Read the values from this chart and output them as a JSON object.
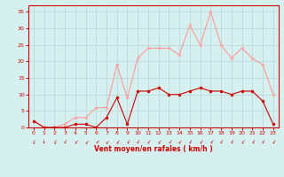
{
  "hours": [
    0,
    1,
    2,
    3,
    4,
    5,
    6,
    7,
    8,
    9,
    10,
    11,
    12,
    13,
    14,
    15,
    16,
    17,
    18,
    19,
    20,
    21,
    22,
    23
  ],
  "wind_avg": [
    2,
    0,
    0,
    0,
    1,
    1,
    0,
    3,
    9,
    1,
    11,
    11,
    12,
    10,
    10,
    11,
    12,
    11,
    11,
    10,
    11,
    11,
    8,
    1
  ],
  "wind_gust": [
    2,
    0,
    0,
    1,
    3,
    3,
    6,
    6,
    19,
    9,
    21,
    24,
    24,
    24,
    22,
    31,
    25,
    35,
    25,
    21,
    24,
    21,
    19,
    10
  ],
  "wind_dir_deg": [
    200,
    180,
    200,
    210,
    220,
    225,
    230,
    225,
    220,
    215,
    210,
    215,
    220,
    215,
    220,
    210,
    215,
    215,
    210,
    210,
    215,
    210,
    210,
    215
  ],
  "bg_color": "#d6f0f0",
  "grid_color": "#b8d4d4",
  "line_avg_color": "#cc0000",
  "line_gust_color": "#ff9999",
  "marker_avg_color": "#cc0000",
  "marker_gust_color": "#ffaaaa",
  "xlabel": "Vent moyen/en rafales ( km/h )",
  "xlabel_color": "#cc0000",
  "tick_color": "#cc0000",
  "axis_color": "#cc0000",
  "arrow_color": "#cc0000",
  "ylim": [
    0,
    37
  ],
  "xlim": [
    -0.5,
    23.5
  ],
  "yticks": [
    0,
    5,
    10,
    15,
    20,
    25,
    30,
    35
  ],
  "xticks": [
    0,
    1,
    2,
    3,
    4,
    5,
    6,
    7,
    8,
    9,
    10,
    11,
    12,
    13,
    14,
    15,
    16,
    17,
    18,
    19,
    20,
    21,
    22,
    23
  ]
}
